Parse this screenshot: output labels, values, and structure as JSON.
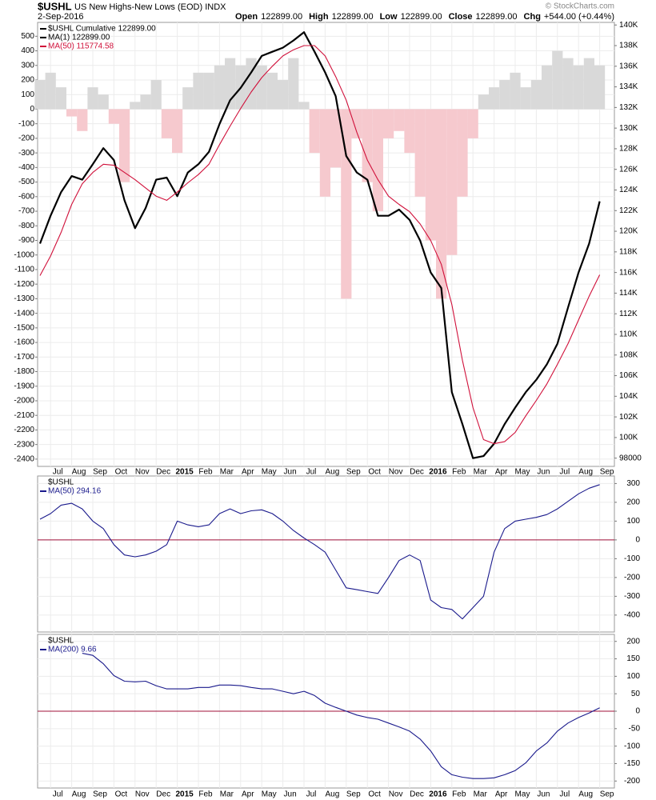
{
  "header": {
    "symbol": "$USHL",
    "subtitle": "US New Highs-New Lows (EOD) INDX",
    "date": "2-Sep-2016",
    "credit": "© StockCharts.com",
    "quote": [
      {
        "label": "Open",
        "value": "122899.00"
      },
      {
        "label": "High",
        "value": "122899.00"
      },
      {
        "label": "Low",
        "value": "122899.00"
      },
      {
        "label": "Close",
        "value": "122899.00"
      },
      {
        "label": "Chg",
        "value": "+544.00 (+0.44%)"
      }
    ]
  },
  "chart_data": [
    {
      "type": "line",
      "grid": true,
      "categories": [
        null,
        "Jul",
        null,
        "Aug",
        null,
        "Sep",
        null,
        "Oct",
        null,
        "Nov",
        null,
        "Dec",
        null,
        "2015",
        null,
        "Feb",
        null,
        "Mar",
        null,
        "Apr",
        null,
        "May",
        null,
        "Jun",
        null,
        "Jul",
        null,
        "Aug",
        null,
        "Sep",
        null,
        "Oct",
        null,
        "Nov",
        null,
        "Dec",
        null,
        "2016",
        null,
        "Feb",
        null,
        "Mar",
        null,
        "Apr",
        null,
        "May",
        null,
        "Jun",
        null,
        "Jul",
        null,
        "Aug",
        null,
        "Sep"
      ],
      "bars": {
        "positive_color": "#d9d9d9",
        "negative_color": "#f6c9ce",
        "values": [
          200,
          250,
          150,
          -50,
          -150,
          150,
          100,
          -100,
          -500,
          50,
          100,
          200,
          -200,
          -300,
          150,
          250,
          250,
          300,
          350,
          300,
          350,
          300,
          250,
          200,
          350,
          50,
          -300,
          -600,
          -400,
          -1300,
          -200,
          -500,
          -700,
          -200,
          -150,
          -300,
          -600,
          -900,
          -1300,
          -1000,
          -600,
          -200,
          100,
          150,
          200,
          250,
          150,
          200,
          300,
          400,
          350,
          300,
          350,
          300
        ]
      },
      "series": [
        {
          "name": "$USHL Cumulative 122899.00",
          "color": "#000000",
          "axis": "y2",
          "values": [
            118800,
            121500,
            123800,
            125350,
            125000,
            126500,
            128060,
            126900,
            123000,
            120300,
            122250,
            125000,
            125200,
            123400,
            125700,
            126500,
            127700,
            130400,
            132700,
            133900,
            135400,
            137000,
            137400,
            137800,
            138500,
            139300,
            137400,
            135400,
            133100,
            127300,
            125700,
            125000,
            121500,
            121500,
            122100,
            121100,
            119100,
            116000,
            114500,
            104400,
            101300,
            98000,
            98200,
            99400,
            101300,
            102900,
            104400,
            105600,
            107100,
            109100,
            112600,
            116000,
            118800,
            122899
          ]
        },
        {
          "name": "MA(50) 115774.58",
          "color": "#d0103a",
          "axis": "y2",
          "values": [
            115700,
            117600,
            119900,
            122600,
            124600,
            125700,
            126500,
            126400,
            125700,
            125000,
            124200,
            123400,
            123000,
            123800,
            124700,
            125500,
            126500,
            128400,
            130200,
            131900,
            133500,
            134900,
            136000,
            137000,
            137600,
            138000,
            138000,
            137000,
            135000,
            132700,
            129600,
            126900,
            125000,
            123400,
            122600,
            121900,
            120700,
            119100,
            116800,
            112900,
            107500,
            102900,
            99800,
            99400,
            99600,
            100500,
            102100,
            103600,
            105200,
            107100,
            109100,
            111400,
            113700,
            115774.58
          ]
        }
      ],
      "legend_extra": "MA(1) 122899.00",
      "ylim": [
        -2450,
        595
      ],
      "yticks": [
        500,
        400,
        300,
        200,
        100,
        0,
        -100,
        -200,
        -300,
        -400,
        -500,
        -600,
        -700,
        -800,
        -900,
        -1000,
        -1100,
        -1200,
        -1300,
        -1400,
        -1500,
        -1600,
        -1700,
        -1800,
        -1900,
        -2000,
        -2100,
        -2200,
        -2300,
        -2400
      ],
      "y2lim": [
        97200,
        140250
      ],
      "y2ticks": [
        98000,
        {
          "value": 100000,
          "label": "100K"
        },
        {
          "value": 102000,
          "label": "102K"
        },
        {
          "value": 104000,
          "label": "104K"
        },
        {
          "value": 106000,
          "label": "106K"
        },
        {
          "value": 108000,
          "label": "108K"
        },
        {
          "value": 110000,
          "label": "110K"
        },
        {
          "value": 112000,
          "label": "112K"
        },
        {
          "value": 114000,
          "label": "114K"
        },
        {
          "value": 116000,
          "label": "116K"
        },
        {
          "value": 118000,
          "label": "118K"
        },
        {
          "value": 120000,
          "label": "120K"
        },
        {
          "value": 122000,
          "label": "122K"
        },
        {
          "value": 124000,
          "label": "124K"
        },
        {
          "value": 126000,
          "label": "126K"
        },
        {
          "value": 128000,
          "label": "128K"
        },
        {
          "value": 130000,
          "label": "130K"
        },
        {
          "value": 132000,
          "label": "132K"
        },
        {
          "value": 134000,
          "label": "134K"
        },
        {
          "value": 136000,
          "label": "136K"
        },
        {
          "value": 138000,
          "label": "138K"
        },
        {
          "value": 140000,
          "label": "140K"
        }
      ]
    },
    {
      "type": "line",
      "grid": true,
      "title": "$USHL",
      "categories": [
        null,
        "Jul",
        null,
        "Aug",
        null,
        "Sep",
        null,
        "Oct",
        null,
        "Nov",
        null,
        "Dec",
        null,
        "2015",
        null,
        "Feb",
        null,
        "Mar",
        null,
        "Apr",
        null,
        "May",
        null,
        "Jun",
        null,
        "Jul",
        null,
        "Aug",
        null,
        "Sep",
        null,
        "Oct",
        null,
        "Nov",
        null,
        "Dec",
        null,
        "2016",
        null,
        "Feb",
        null,
        "Mar",
        null,
        "Apr",
        null,
        "May",
        null,
        "Jun",
        null,
        "Jul",
        null,
        "Aug",
        null,
        "Sep"
      ],
      "series": [
        {
          "name": "MA(50) 294.16",
          "color": "#1a1a8c",
          "values": [
            110,
            140,
            185,
            195,
            165,
            100,
            60,
            -25,
            -80,
            -90,
            -80,
            -60,
            -25,
            100,
            80,
            70,
            80,
            140,
            165,
            140,
            155,
            160,
            140,
            100,
            50,
            10,
            -25,
            -65,
            -160,
            -255,
            -265,
            -275,
            -285,
            -200,
            -110,
            -80,
            -110,
            -320,
            -360,
            -370,
            -420,
            -360,
            -300,
            -65,
            60,
            100,
            110,
            120,
            135,
            165,
            205,
            245,
            275,
            294.16
          ]
        }
      ],
      "reference_line": {
        "value": 0,
        "color": "#a0103a"
      },
      "ylim": [
        -490,
        340
      ],
      "yticks": [
        300,
        200,
        100,
        0,
        -100,
        -200,
        -300,
        -400
      ]
    },
    {
      "type": "line",
      "grid": true,
      "title": "$USHL",
      "categories": [
        null,
        "Jul",
        null,
        "Aug",
        null,
        "Sep",
        null,
        "Oct",
        null,
        "Nov",
        null,
        "Dec",
        null,
        "2015",
        null,
        "Feb",
        null,
        "Mar",
        null,
        "Apr",
        null,
        "May",
        null,
        "Jun",
        null,
        "Jul",
        null,
        "Aug",
        null,
        "Sep",
        null,
        "Oct",
        null,
        "Nov",
        null,
        "Dec",
        null,
        "2016",
        null,
        "Feb",
        null,
        "Mar",
        null,
        "Apr",
        null,
        "May",
        null,
        "Jun",
        null,
        "Jul",
        null,
        "Aug",
        null,
        "Sep"
      ],
      "series": [
        {
          "name": "MA(200) 9.66",
          "color": "#1a1a8c",
          "values": [
            null,
            null,
            null,
            null,
            166,
            160,
            136,
            102,
            86,
            84,
            86,
            73,
            64,
            64,
            64,
            68,
            68,
            75,
            75,
            73,
            68,
            64,
            64,
            57,
            50,
            57,
            45,
            23,
            11,
            0,
            -11,
            -18,
            -23,
            -34,
            -45,
            -57,
            -80,
            -114,
            -159,
            -182,
            -189,
            -193,
            -193,
            -191,
            -182,
            -170,
            -148,
            -114,
            -91,
            -57,
            -34,
            -18,
            -5,
            9.66
          ]
        }
      ],
      "reference_line": {
        "value": 0,
        "color": "#a0103a"
      },
      "ylim": [
        -220,
        220
      ],
      "yticks": [
        200,
        150,
        100,
        50,
        0,
        -50,
        -100,
        -150,
        -200
      ]
    }
  ]
}
